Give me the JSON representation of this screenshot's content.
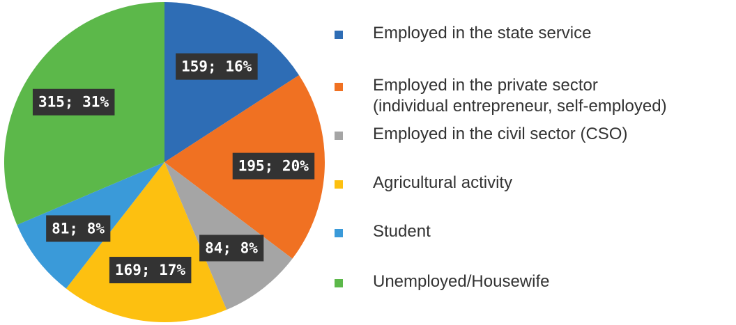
{
  "chart_data": {
    "type": "pie",
    "categories": [
      "Employed in the state service",
      "Employed in the private sector\n(individual entrepreneur, self-employed)",
      "Employed in the civil sector (CSO)",
      "Agricultural activity",
      "Student",
      "Unemployed/Housewife"
    ],
    "values": [
      159,
      195,
      84,
      169,
      81,
      315
    ],
    "value_labels": [
      "159; 16%",
      "195; 20%",
      "84; 8%",
      "169; 17%",
      "81; 8%",
      "315; 31%"
    ],
    "colors": [
      "#2e6db5",
      "#f07122",
      "#a5a5a5",
      "#fdc010",
      "#3a9ad9",
      "#5cb84a"
    ],
    "legend": "right"
  }
}
